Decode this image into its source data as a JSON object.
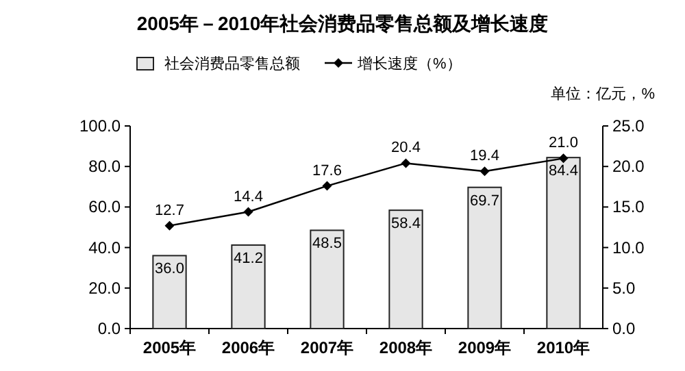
{
  "chart_data": {
    "type": "bar",
    "title": "2005年－2010年社会消费品零售总额及增长速度",
    "annotations": [
      "单位：亿元，%"
    ],
    "categories": [
      "2005年",
      "2006年",
      "2007年",
      "2008年",
      "2009年",
      "2010年"
    ],
    "series": [
      {
        "name": "社会消费品零售总额",
        "color": "#e6e6e6",
        "values": [
          36.0,
          41.2,
          48.5,
          58.4,
          69.7,
          84.4
        ],
        "value_labels": [
          "36.0",
          "41.2",
          "48.5",
          "58.4",
          "69.7",
          "84.4"
        ]
      },
      {
        "name": "增长速度（%）",
        "type": "line",
        "axis": "y2",
        "color": "#000000",
        "values": [
          12.7,
          14.4,
          17.6,
          20.4,
          19.4,
          21.0
        ],
        "value_labels": [
          "12.7",
          "14.4",
          "17.6",
          "20.4",
          "19.4",
          "21.0"
        ]
      }
    ],
    "ylim": [
      0,
      100
    ],
    "yticks": [
      {
        "value": 0,
        "label": "0.0"
      },
      {
        "value": 20,
        "label": "20.0"
      },
      {
        "value": 40,
        "label": "40.0"
      },
      {
        "value": 60,
        "label": "60.0"
      },
      {
        "value": 80,
        "label": "80.0"
      },
      {
        "value": 100,
        "label": "100.0"
      }
    ],
    "y2lim": [
      0,
      25
    ],
    "y2ticks": [
      {
        "value": 0,
        "label": "0.0"
      },
      {
        "value": 5,
        "label": "5.0"
      },
      {
        "value": 10,
        "label": "10.0"
      },
      {
        "value": 15,
        "label": "15.0"
      },
      {
        "value": 20,
        "label": "20.0"
      },
      {
        "value": 25,
        "label": "25.0"
      }
    ],
    "marker": "diamond",
    "legend": "top"
  }
}
